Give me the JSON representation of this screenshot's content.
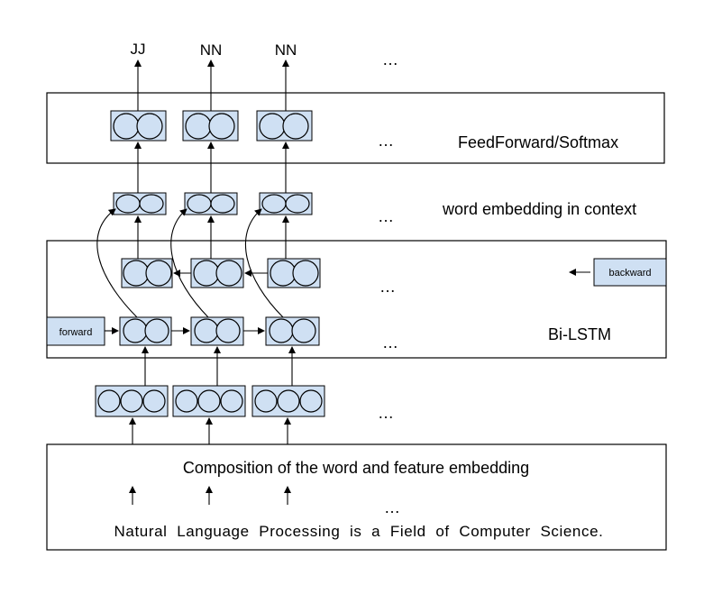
{
  "output_tags": [
    "JJ",
    "NN",
    "NN"
  ],
  "ellipsis": "…",
  "layers": {
    "feedforward": "FeedForward/Softmax",
    "context": "word embedding in context",
    "bilstm": "Bi-LSTM",
    "composition": "Composition of the word and feature embedding"
  },
  "directions": {
    "forward": "forward",
    "backward": "backward"
  },
  "sentence": "Natural  Language  Processing  is  a  Field  of  Computer  Science."
}
